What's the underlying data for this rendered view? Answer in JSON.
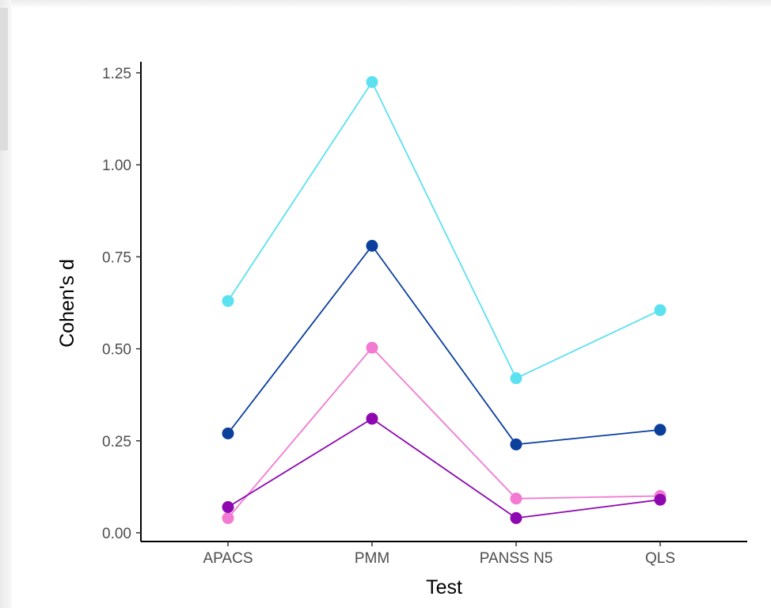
{
  "chart_data": {
    "type": "line",
    "xlabel": "Test",
    "ylabel": "Cohen's d",
    "categories": [
      "APACS",
      "PMM",
      "PANSS N5",
      "QLS"
    ],
    "ylim": [
      0,
      1.25
    ],
    "yticks": [
      "0.00",
      "0.25",
      "0.50",
      "0.75",
      "1.00",
      "1.25"
    ],
    "grid": false,
    "legend": "none",
    "series": [
      {
        "color": "#5ce1f0",
        "values": [
          0.63,
          1.225,
          0.42,
          0.605
        ]
      },
      {
        "color": "#0a3f9c",
        "values": [
          0.27,
          0.78,
          0.24,
          0.28
        ]
      },
      {
        "color": "#f27ad2",
        "values": [
          0.04,
          0.503,
          0.093,
          0.1
        ]
      },
      {
        "color": "#8e08b0",
        "values": [
          0.07,
          0.31,
          0.04,
          0.09
        ]
      }
    ]
  }
}
